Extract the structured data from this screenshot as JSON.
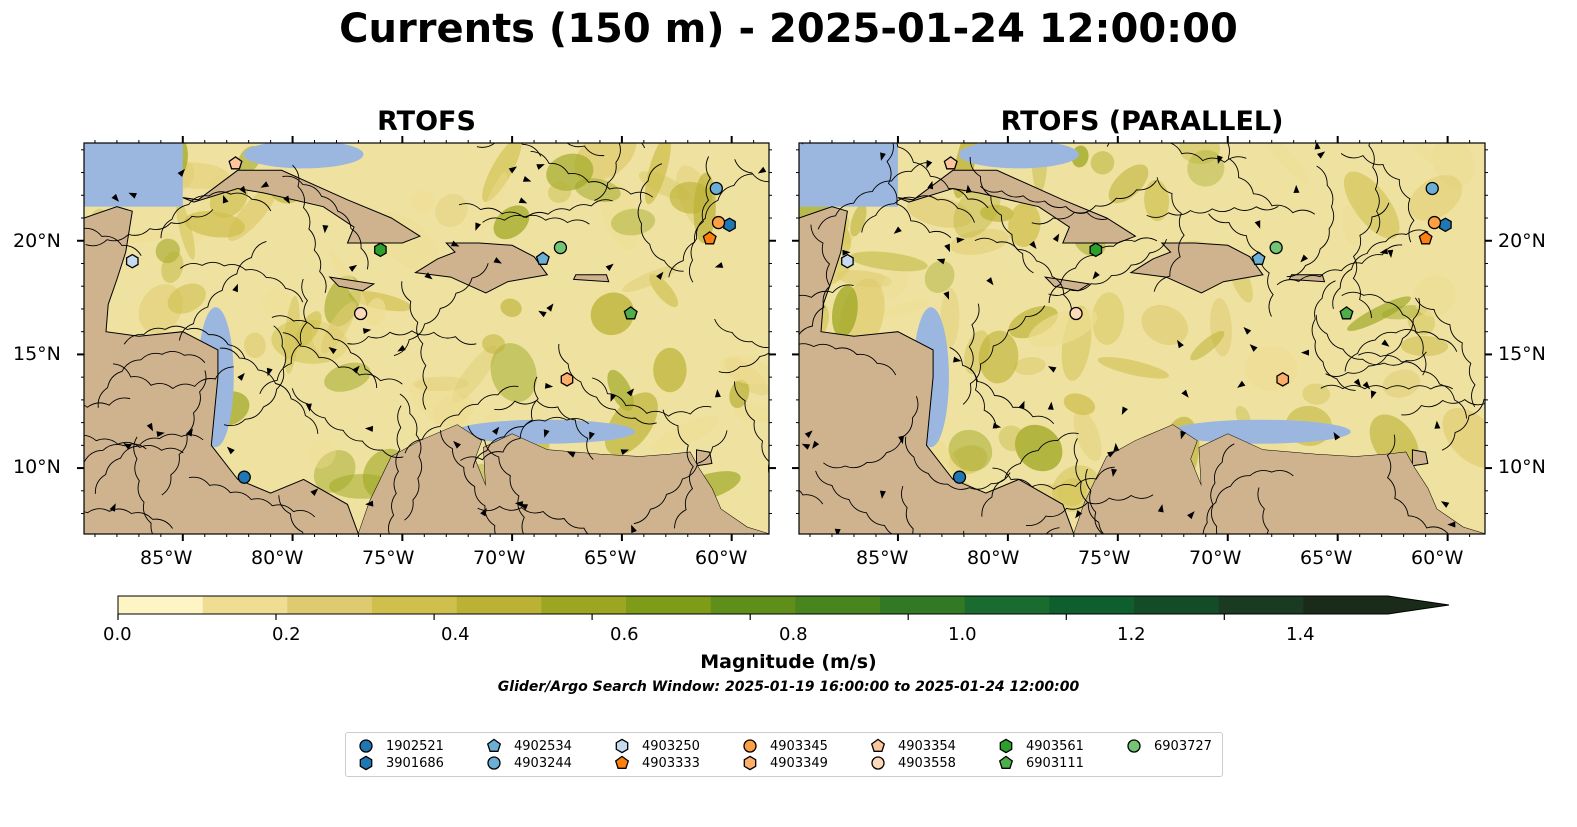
{
  "title": "Currents (150 m) - 2025-01-24 12:00:00",
  "panels": [
    {
      "title": "RTOFS"
    },
    {
      "title": "RTOFS (PARALLEL)"
    }
  ],
  "axes": {
    "lon_ticks": [
      "85°W",
      "80°W",
      "75°W",
      "70°W",
      "65°W",
      "60°W"
    ],
    "lat_ticks": [
      "20°N",
      "15°N",
      "10°N"
    ],
    "lon_range": [
      -89.5,
      -58.3
    ],
    "lat_range": [
      7.1,
      24.3
    ]
  },
  "colorbar": {
    "label": "Magnitude (m/s)",
    "ticks": [
      "0.0",
      "0.2",
      "0.4",
      "0.6",
      "0.8",
      "1.0",
      "1.2",
      "1.4"
    ],
    "range": [
      0.0,
      1.5
    ],
    "extend": "max",
    "colors": [
      "#fdf5c4",
      "#eedd93",
      "#decb6f",
      "#cfbf4d",
      "#bbb134",
      "#9ca621",
      "#7e9c18",
      "#5f8e1b",
      "#48851f",
      "#317a23",
      "#1a6b2f",
      "#0f5e2d",
      "#144c28",
      "#1a3b22",
      "#1b2b1a"
    ]
  },
  "search_window": "Glider/Argo Search Window: 2025-01-19 16:00:00 to 2025-01-24 12:00:00",
  "legend": [
    {
      "label": "1902521",
      "marker": "circle",
      "color": "#1f77b4"
    },
    {
      "label": "3901686",
      "marker": "hexagon",
      "color": "#1f77b4"
    },
    {
      "label": "4902534",
      "marker": "pentagon",
      "color": "#6baed6"
    },
    {
      "label": "4903244",
      "marker": "circle",
      "color": "#6baed6"
    },
    {
      "label": "4903250",
      "marker": "hexagon",
      "color": "#c6dbef"
    },
    {
      "label": "4903333",
      "marker": "pentagon",
      "color": "#fd7f0e"
    },
    {
      "label": "4903345",
      "marker": "circle",
      "color": "#fd9f45"
    },
    {
      "label": "4903349",
      "marker": "hexagon",
      "color": "#fdae6b"
    },
    {
      "label": "4903354",
      "marker": "pentagon",
      "color": "#fdc59c"
    },
    {
      "label": "4903558",
      "marker": "circle",
      "color": "#fdd9bc"
    },
    {
      "label": "4903561",
      "marker": "hexagon",
      "color": "#2ca02c"
    },
    {
      "label": "6903111",
      "marker": "pentagon",
      "color": "#4daf4a"
    },
    {
      "label": "6903727",
      "marker": "circle",
      "color": "#74c476"
    }
  ],
  "floats": [
    {
      "id": "1902521",
      "lon": -82.2,
      "lat": 9.6
    },
    {
      "id": "3901686",
      "lon": -60.1,
      "lat": 20.7
    },
    {
      "id": "4902534",
      "lon": -68.6,
      "lat": 19.2
    },
    {
      "id": "4903244",
      "lon": -60.7,
      "lat": 22.3
    },
    {
      "id": "4903250",
      "lon": -87.3,
      "lat": 19.1
    },
    {
      "id": "4903333",
      "lon": -61.0,
      "lat": 20.1
    },
    {
      "id": "4903345",
      "lon": -60.6,
      "lat": 20.8
    },
    {
      "id": "4903349",
      "lon": -67.5,
      "lat": 13.9
    },
    {
      "id": "4903354",
      "lon": -82.6,
      "lat": 23.4
    },
    {
      "id": "4903558",
      "lon": -76.9,
      "lat": 16.8
    },
    {
      "id": "4903561",
      "lon": -76.0,
      "lat": 19.6
    },
    {
      "id": "6903111",
      "lon": -64.6,
      "lat": 16.8
    },
    {
      "id": "6903727",
      "lon": -67.8,
      "lat": 19.7
    }
  ],
  "colors": {
    "ocean": "#efe2a0",
    "land": "#cfb38f",
    "shallow": "#9bb7df",
    "streamline": "#000000"
  }
}
